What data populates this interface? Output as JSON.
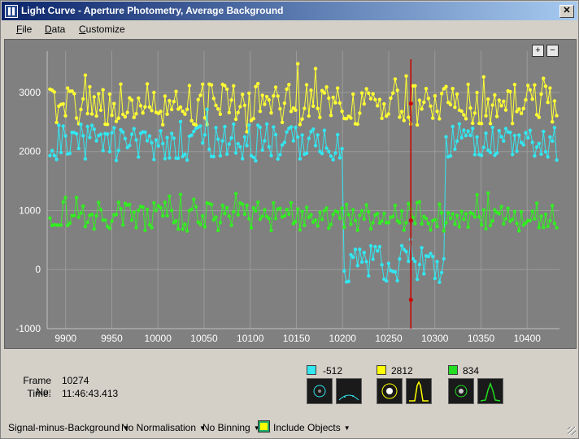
{
  "window": {
    "title": "Light Curve - Aperture Photometry, Average Background",
    "close_glyph": "✕"
  },
  "menu": [
    {
      "label": "File",
      "accel": "F",
      "rest": "ile"
    },
    {
      "label": "Data",
      "accel": "D",
      "rest": "ata"
    },
    {
      "label": "Customize",
      "accel": "C",
      "rest": "ustomize"
    }
  ],
  "zoom": {
    "in_label": "+",
    "out_label": "−"
  },
  "chart_data": {
    "type": "scatter",
    "title": "",
    "xlabel": "",
    "ylabel": "",
    "xlim": [
      9880,
      10435
    ],
    "ylim": [
      -1000,
      3700
    ],
    "x_ticks": [
      9900,
      9950,
      10000,
      10050,
      10100,
      10150,
      10200,
      10250,
      10300,
      10350,
      10400
    ],
    "y_ticks": [
      -1000,
      0,
      1000,
      2000,
      3000
    ],
    "grid": true,
    "background": "#808080",
    "cursor_frame": 10274,
    "cursor_color": "#cc0000",
    "series": [
      {
        "color": "#ffff33",
        "base": 2800,
        "amplitude": 350,
        "segments": []
      },
      {
        "color": "#33e6f0",
        "base": 2150,
        "amplitude": 320,
        "segments": [
          {
            "from": 10200,
            "to": 10310,
            "level": 100
          }
        ]
      },
      {
        "color": "#33ee22",
        "base": 900,
        "amplitude": 250,
        "segments": []
      }
    ],
    "cursor_values": [
      2812,
      -512,
      834
    ]
  },
  "info": {
    "frame_label": "Frame No:",
    "frame_value": "10274",
    "time_label": "Time:",
    "time_value": "11:46:43.413"
  },
  "objects": [
    {
      "color": "#33e6f0",
      "value": "-512",
      "thumb1": "aperture-blue",
      "thumb2": "profile-blue"
    },
    {
      "color": "#ffff00",
      "value": "2812",
      "thumb1": "aperture-yellow",
      "thumb2": "profile-yellow"
    },
    {
      "color": "#22dd22",
      "value": "834",
      "thumb1": "aperture-green",
      "thumb2": "profile-green"
    }
  ],
  "status": {
    "mode": "Signal-minus-Background",
    "normalisation": "No Normalisation",
    "binning": "No Binning",
    "include": "Include Objects"
  }
}
